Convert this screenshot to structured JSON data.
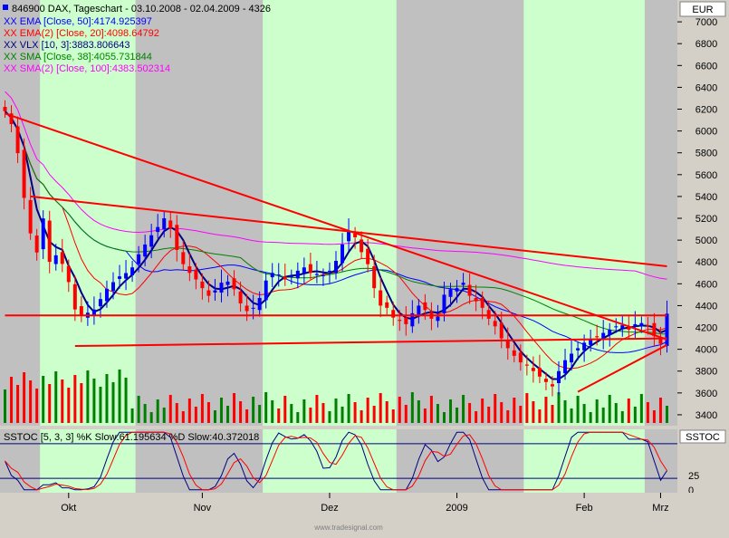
{
  "chart_data": [
    {
      "type": "candlestick",
      "title": "846900 DAX, Tageschart - 03.10.2008 - 02.04.2009 - 4326",
      "currency": "EUR",
      "watermark": "www.tradesignal.com",
      "x_ticks": [
        "Okt",
        "Nov",
        "Dez",
        "2009",
        "Feb",
        "Mrz"
      ],
      "y_ticks": [
        3400,
        3600,
        3800,
        4000,
        4200,
        4400,
        4600,
        4800,
        5000,
        5200,
        5400,
        5600,
        5800,
        6000,
        6200,
        6400,
        6600,
        6800,
        7000
      ],
      "ylim": [
        3300,
        7200
      ],
      "indicators": [
        {
          "label": "EMA [Close, 50]:4174.925397",
          "color": "#0000ff"
        },
        {
          "label": "EMA(2) [Close, 20]:4098.64792",
          "color": "#ff0000"
        },
        {
          "label": "VLX [10, 3]:3883.806643",
          "color": "#000080"
        },
        {
          "label": "SMA [Close, 38]:4055.731844",
          "color": "#008000"
        },
        {
          "label": "SMA(2) [Close, 100]:4383.502314",
          "color": "#ff00ff"
        }
      ],
      "closes": [
        6181,
        6063,
        5797,
        5387,
        5062,
        4887,
        5199,
        4801,
        4861,
        4782,
        4616,
        4365,
        4309,
        4335,
        4364,
        4460,
        4554,
        4615,
        4668,
        4698,
        4750,
        4870,
        4960,
        5045,
        5120,
        5200,
        5110,
        4910,
        4780,
        4700,
        4640,
        4560,
        4490,
        4540,
        4610,
        4620,
        4550,
        4420,
        4350,
        4380,
        4470,
        4630,
        4700,
        4685,
        4640,
        4670,
        4720,
        4750,
        4700,
        4690,
        4680,
        4720,
        4810,
        4960,
        5080,
        5026,
        4890,
        4780,
        4560,
        4400,
        4380,
        4290,
        4260,
        4230,
        4330,
        4400,
        4360,
        4280,
        4300,
        4500,
        4550,
        4560,
        4610,
        4490,
        4440,
        4380,
        4280,
        4210,
        4100,
        4010,
        3940,
        3880,
        3850,
        3800,
        3750,
        3700,
        3660,
        3800,
        3900,
        3960,
        4010,
        4060,
        4090,
        4110,
        4150,
        4180,
        4210,
        4220,
        4180,
        4230,
        4240,
        4210,
        4120,
        4050,
        4326
      ],
      "trendlines": [
        {
          "from": [
            0,
            6160
          ],
          "to": [
            104,
            4090
          ],
          "color": "#ff0000"
        },
        {
          "from": [
            4,
            5400
          ],
          "to": [
            104,
            4760
          ],
          "color": "#ff0000"
        },
        {
          "from": [
            11,
            4030
          ],
          "to": [
            104,
            4100
          ],
          "color": "#ff0000"
        },
        {
          "from": [
            90,
            3610
          ],
          "to": [
            104,
            4040
          ],
          "color": "#ff0000"
        },
        {
          "from": [
            0,
            4310
          ],
          "to": [
            104,
            4310
          ],
          "color": "#ff0000"
        }
      ]
    },
    {
      "type": "line",
      "title": "SSTOC [5, 3, 3] %K Slow:61.195634 %D Slow:40.372018",
      "name": "SSTOC",
      "series": [
        {
          "name": "%K Slow",
          "color": "#000080"
        },
        {
          "name": "%D Slow",
          "color": "#ff0000"
        }
      ],
      "y_ticks": [
        0,
        25
      ],
      "ylim": [
        -5,
        105
      ]
    }
  ],
  "header": {
    "title": "846900  DAX, Tageschart - 03.10.2008 - 02.04.2009 - 4326",
    "currency": "EUR",
    "ind_name": "SSTOC",
    "ind_legend": "SSTOC [5, 3, 3] %K Slow:61.195634 %D Slow:40.372018"
  },
  "colors": {
    "bg_panel": "#c0c0c0",
    "bg_green": "#ccffcc",
    "up": "#0000ff",
    "down": "#ff0000",
    "volume_up": "#008000",
    "volume_down": "#ff0000"
  }
}
